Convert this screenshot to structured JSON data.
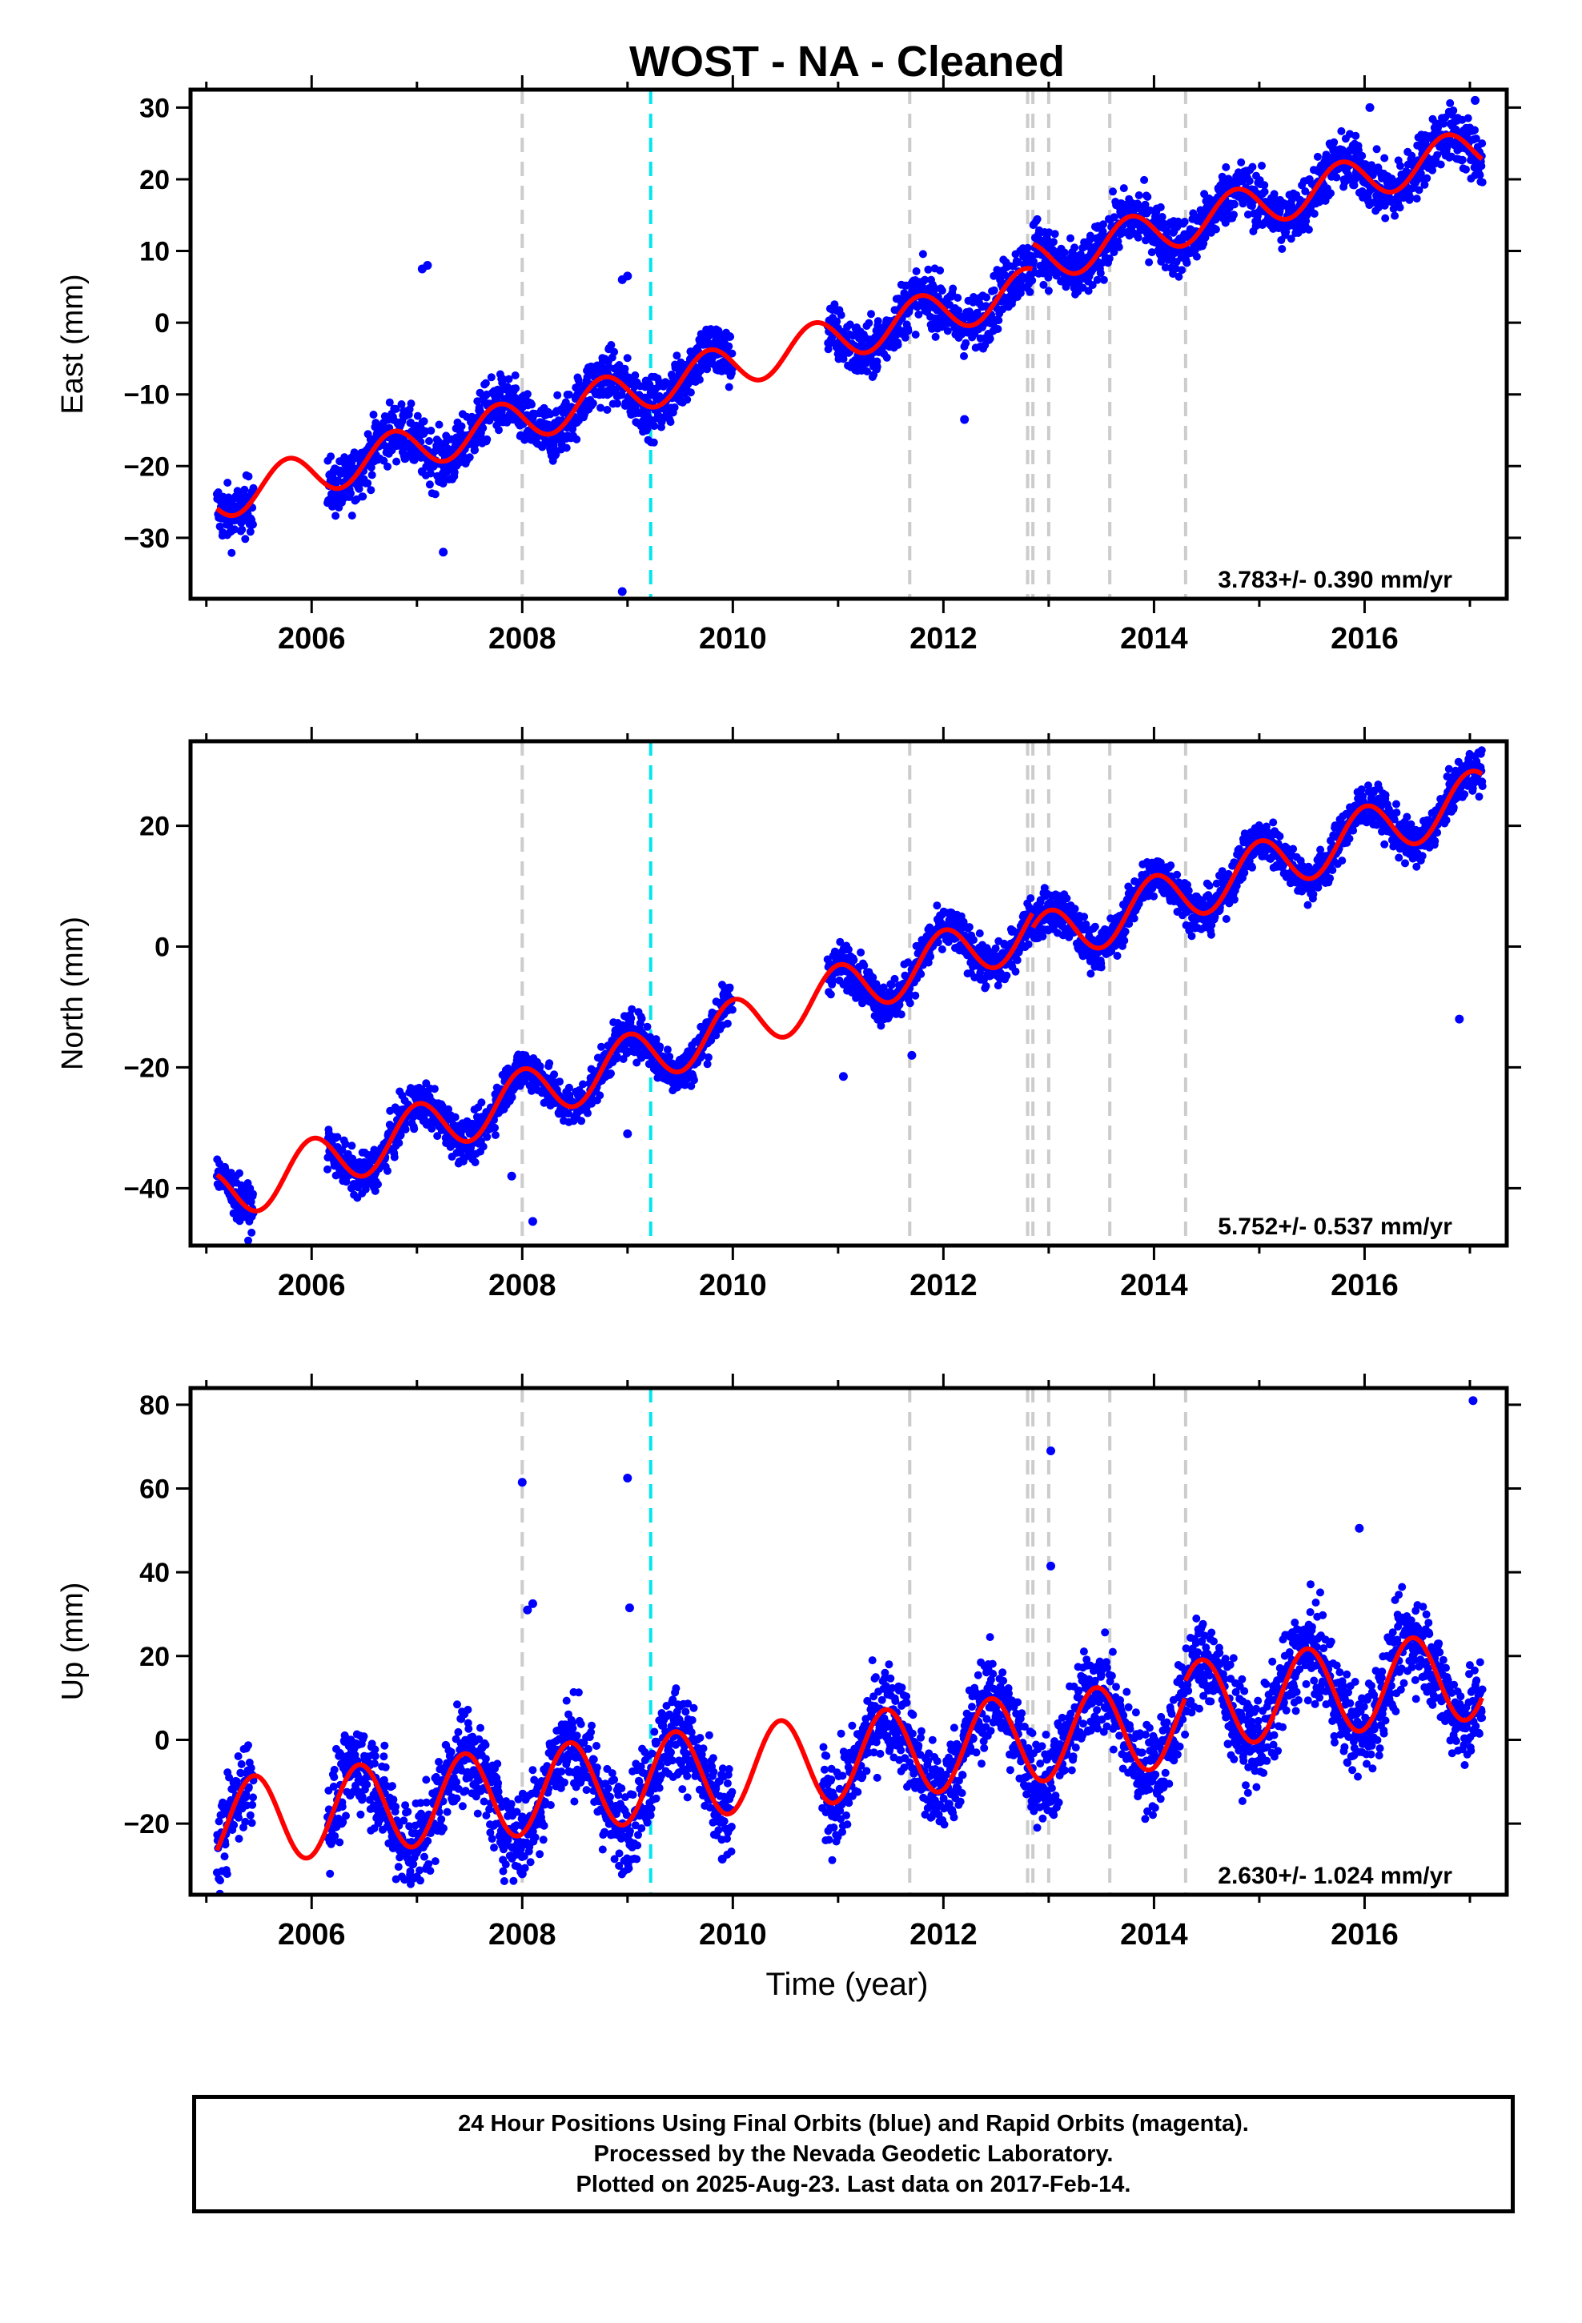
{
  "chart_data": {
    "type": "scatter",
    "title": "WOST  - NA - Cleaned",
    "xlabel": "Time (year)",
    "xlim": [
      2004.85,
      2017.35
    ],
    "x_ticks": [
      2006,
      2008,
      2010,
      2012,
      2014,
      2016
    ],
    "x_tick_labels": [
      "2006",
      "2008",
      "2010",
      "2012",
      "2014",
      "2016"
    ],
    "colors": {
      "data": "#0000ff",
      "model": "#ff0000",
      "equipment_change": "#cccccc",
      "earthquake": "#00e5ee"
    },
    "vertical_lines": {
      "gray_dashed": [
        2008.0,
        2011.68,
        2012.8,
        2012.85,
        2013.0,
        2013.58,
        2014.3
      ],
      "cyan_dashed": [
        2009.22
      ]
    },
    "panels": [
      {
        "name": "East",
        "ylabel": "East (mm)",
        "ylim": [
          -38.5,
          32.5
        ],
        "y_ticks": [
          -30,
          -20,
          -10,
          0,
          10,
          20,
          30
        ],
        "y_tick_labels": [
          "−30",
          "−20",
          "−10",
          "0",
          "10",
          "20",
          "30"
        ],
        "rate_text": "3.783+/- 0.390 mm/yr",
        "model": {
          "x0": 2005.1,
          "y0": -24.5,
          "slope": 3.783,
          "amplitude": 3.0,
          "phase": 3.0,
          "offsets": [
            [
              2012.85,
              3.5
            ]
          ]
        },
        "data_segments": [
          [
            2005.1,
            2005.45
          ],
          [
            2006.15,
            2010.0
          ],
          [
            2010.9,
            2017.12
          ]
        ],
        "scatter": 2.0,
        "outliers": [
          [
            2007.05,
            7.5
          ],
          [
            2007.1,
            8.0
          ],
          [
            2007.25,
            -32.0
          ],
          [
            2008.95,
            6.0
          ],
          [
            2009.0,
            6.5
          ],
          [
            2008.95,
            -37.5
          ],
          [
            2012.2,
            -13.5
          ],
          [
            2016.05,
            30.0
          ],
          [
            2017.05,
            31.0
          ]
        ]
      },
      {
        "name": "North",
        "ylabel": "North (mm)",
        "ylim": [
          -49.5,
          34.0
        ],
        "y_ticks": [
          -40,
          -20,
          0,
          20
        ],
        "y_tick_labels": [
          "−40",
          "−20",
          "0",
          "20"
        ],
        "rate_text": "5.752+/- 0.537 mm/yr",
        "model": {
          "x0": 2005.1,
          "y0": -41.5,
          "slope": 5.752,
          "amplitude": 4.5,
          "phase": 1.55,
          "offsets": [
            [
              2012.85,
              -2.5
            ]
          ]
        },
        "data_segments": [
          [
            2005.1,
            2005.45
          ],
          [
            2006.15,
            2010.0
          ],
          [
            2010.9,
            2017.12
          ]
        ],
        "scatter": 1.8,
        "outliers": [
          [
            2007.9,
            -38.0
          ],
          [
            2008.1,
            -45.5
          ],
          [
            2011.05,
            -21.5
          ],
          [
            2011.7,
            -18.0
          ],
          [
            2009.0,
            -31.0
          ],
          [
            2016.9,
            -12.0
          ]
        ]
      },
      {
        "name": "Up",
        "ylabel": "Up (mm)",
        "ylim": [
          -37,
          84
        ],
        "y_ticks": [
          -20,
          0,
          20,
          40,
          60,
          80
        ],
        "y_tick_labels": [
          "−20",
          "0",
          "20",
          "40",
          "60",
          "80"
        ],
        "rate_text": "2.630+/- 1.024 mm/yr",
        "model": {
          "x0": 2005.1,
          "y0": -20.0,
          "slope": 2.63,
          "amplitude": 10.5,
          "phase": 5.0,
          "offsets": [
            [
              2014.3,
              4.0
            ]
          ]
        },
        "data_segments": [
          [
            2005.1,
            2005.45
          ],
          [
            2006.15,
            2010.0
          ],
          [
            2010.85,
            2017.12
          ]
        ],
        "scatter": 5.5,
        "outliers": [
          [
            2008.0,
            61.5
          ],
          [
            2008.05,
            31.0
          ],
          [
            2008.1,
            32.5
          ],
          [
            2009.0,
            62.5
          ],
          [
            2009.02,
            31.5
          ],
          [
            2013.02,
            69.0
          ],
          [
            2013.02,
            41.5
          ],
          [
            2015.95,
            50.5
          ],
          [
            2017.03,
            81.0
          ],
          [
            2009.9,
            -28.5
          ],
          [
            2008.0,
            -32.0
          ]
        ]
      }
    ]
  },
  "footer": {
    "line1": "24 Hour Positions Using Final Orbits (blue) and Rapid Orbits (magenta).",
    "line2": "Processed by the Nevada Geodetic Laboratory.",
    "line3": "Plotted on 2025-Aug-23. Last data on 2017-Feb-14."
  }
}
